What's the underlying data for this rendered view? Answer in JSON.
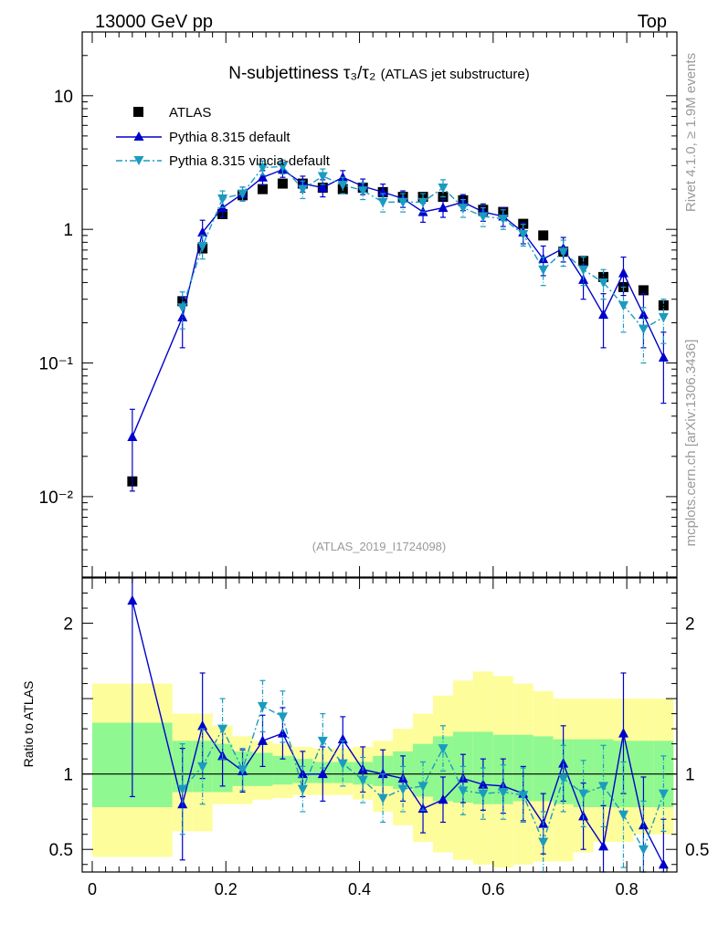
{
  "header": {
    "left": "13000 GeV pp",
    "right": "Top"
  },
  "side_labels": {
    "top": "Rivet 4.1.0, ≥ 1.9M events",
    "bottom": "mcplots.cern.ch [arXiv:1306.3436]"
  },
  "chart_data": {
    "type": "line",
    "title": "N-subjettiness τ₃/τ₂",
    "title_suffix": "(ATLAS jet substructure)",
    "analysis_id": "(ATLAS_2019_I1724098)",
    "x": [
      0.06,
      0.135,
      0.165,
      0.195,
      0.225,
      0.255,
      0.285,
      0.315,
      0.345,
      0.375,
      0.405,
      0.435,
      0.465,
      0.495,
      0.525,
      0.555,
      0.585,
      0.615,
      0.645,
      0.675,
      0.705,
      0.735,
      0.765,
      0.795,
      0.825,
      0.855
    ],
    "x_ticks": [
      0,
      0.2,
      0.4,
      0.6,
      0.8
    ],
    "xlim": [
      -0.015,
      0.875
    ],
    "main": {
      "ylim_log": [
        0.0025,
        30
      ],
      "y_ticks": [
        {
          "value": 10,
          "label": "10"
        },
        {
          "value": 1,
          "label": "1"
        },
        {
          "value": 0.1,
          "label": "10⁻¹"
        },
        {
          "value": 0.01,
          "label": "10⁻²"
        }
      ],
      "series": [
        {
          "name": "ATLAS",
          "style": "data",
          "color": "#000000",
          "values": [
            0.013,
            0.29,
            0.72,
            1.3,
            1.8,
            2.0,
            2.2,
            2.2,
            2.05,
            2.0,
            2.05,
            1.9,
            1.75,
            1.75,
            1.75,
            1.65,
            1.4,
            1.35,
            1.1,
            0.9,
            0.68,
            0.58,
            0.44,
            0.37,
            0.35,
            0.27
          ]
        },
        {
          "name": "Pythia 8.315 default",
          "style": "up",
          "color": "#0000cc",
          "values": [
            0.028,
            0.22,
            0.95,
            1.45,
            1.85,
            2.45,
            2.8,
            2.2,
            2.05,
            2.45,
            2.1,
            1.9,
            1.7,
            1.35,
            1.45,
            1.6,
            1.35,
            1.25,
            0.95,
            0.6,
            0.72,
            0.42,
            0.23,
            0.47,
            0.23,
            0.11
          ],
          "err": [
            0.017,
            0.09,
            0.22,
            0.22,
            0.22,
            0.3,
            0.35,
            0.3,
            0.3,
            0.3,
            0.28,
            0.28,
            0.24,
            0.22,
            0.22,
            0.22,
            0.2,
            0.2,
            0.17,
            0.15,
            0.15,
            0.12,
            0.1,
            0.15,
            0.1,
            0.06
          ]
        },
        {
          "name": "Pythia 8.315 vincia-default",
          "style": "down",
          "color": "#1a9bc0",
          "values": [
            null,
            0.26,
            0.75,
            1.7,
            1.85,
            2.9,
            2.95,
            2.0,
            2.5,
            2.15,
            1.95,
            1.6,
            1.6,
            1.6,
            2.05,
            1.45,
            1.25,
            1.2,
            0.92,
            0.5,
            0.68,
            0.5,
            0.4,
            0.27,
            0.18,
            0.22
          ],
          "err": [
            null,
            0.08,
            0.15,
            0.24,
            0.22,
            0.35,
            0.35,
            0.3,
            0.33,
            0.3,
            0.28,
            0.25,
            0.25,
            0.25,
            0.3,
            0.22,
            0.2,
            0.2,
            0.17,
            0.12,
            0.15,
            0.12,
            0.1,
            0.1,
            0.08,
            0.08
          ]
        }
      ]
    },
    "ratio": {
      "ylabel": "Ratio to ATLAS",
      "ylim": [
        0.35,
        2.3
      ],
      "y_ticks": [
        {
          "value": 0.5,
          "label": "0.5"
        },
        {
          "value": 1,
          "label": "1"
        },
        {
          "value": 2,
          "label": "2"
        }
      ],
      "bands": {
        "edges": [
          0.0,
          0.12,
          0.15,
          0.18,
          0.21,
          0.24,
          0.27,
          0.3,
          0.33,
          0.36,
          0.39,
          0.42,
          0.45,
          0.48,
          0.51,
          0.54,
          0.57,
          0.6,
          0.63,
          0.66,
          0.69,
          0.72,
          0.75,
          0.78,
          0.81,
          0.84,
          0.87
        ],
        "stat_lo": [
          0.78,
          0.88,
          0.88,
          0.88,
          0.92,
          0.92,
          0.93,
          0.94,
          0.94,
          0.94,
          0.93,
          0.92,
          0.9,
          0.85,
          0.82,
          0.81,
          0.8,
          0.8,
          0.82,
          0.82,
          0.8,
          0.78,
          0.78,
          0.78,
          0.78,
          0.78
        ],
        "stat_hi": [
          1.34,
          1.22,
          1.22,
          1.2,
          1.15,
          1.14,
          1.12,
          1.1,
          1.08,
          1.08,
          1.08,
          1.12,
          1.15,
          1.2,
          1.25,
          1.28,
          1.28,
          1.26,
          1.26,
          1.25,
          1.23,
          1.23,
          1.23,
          1.22,
          1.22,
          1.22
        ],
        "tot_lo": [
          0.45,
          0.62,
          0.62,
          0.8,
          0.8,
          0.83,
          0.84,
          0.86,
          0.86,
          0.86,
          0.83,
          0.75,
          0.66,
          0.55,
          0.48,
          0.43,
          0.4,
          0.38,
          0.4,
          0.42,
          0.42,
          0.48,
          0.55,
          0.55,
          0.6,
          0.6
        ],
        "tot_hi": [
          1.6,
          1.4,
          1.4,
          1.32,
          1.25,
          1.22,
          1.2,
          1.18,
          1.17,
          1.17,
          1.18,
          1.22,
          1.3,
          1.4,
          1.52,
          1.62,
          1.68,
          1.65,
          1.6,
          1.55,
          1.5,
          1.5,
          1.5,
          1.5,
          1.5,
          1.5
        ]
      },
      "series": [
        {
          "name": "Pythia 8.315 default",
          "style": "up",
          "color": "#0000cc",
          "values": [
            2.15,
            0.8,
            1.32,
            1.12,
            1.02,
            1.22,
            1.27,
            1.0,
            1.0,
            1.23,
            1.03,
            1.0,
            0.97,
            0.77,
            0.83,
            0.97,
            0.93,
            0.92,
            0.87,
            0.67,
            1.07,
            0.72,
            0.52,
            1.27,
            0.66,
            0.4
          ],
          "err": [
            1.3,
            0.37,
            0.35,
            0.2,
            0.14,
            0.17,
            0.17,
            0.15,
            0.18,
            0.15,
            0.15,
            0.16,
            0.15,
            0.16,
            0.15,
            0.16,
            0.17,
            0.18,
            0.18,
            0.2,
            0.25,
            0.22,
            0.27,
            0.4,
            0.32,
            0.3
          ]
        },
        {
          "name": "Pythia 8.315 vincia-default",
          "style": "down",
          "color": "#1a9bc0",
          "values": [
            null,
            0.9,
            1.05,
            1.3,
            1.03,
            1.45,
            1.38,
            0.9,
            1.22,
            1.07,
            0.96,
            0.84,
            0.9,
            0.92,
            1.17,
            0.89,
            0.87,
            0.88,
            0.86,
            0.55,
            0.97,
            0.87,
            0.92,
            0.73,
            0.5,
            0.87
          ]
        }
      ],
      "vincia_err": [
        null,
        0.3,
        0.25,
        0.2,
        0.14,
        0.17,
        0.17,
        0.15,
        0.18,
        0.15,
        0.15,
        0.16,
        0.15,
        0.16,
        0.15,
        0.16,
        0.17,
        0.18,
        0.18,
        0.2,
        0.22,
        0.22,
        0.27,
        0.35,
        0.32,
        0.25
      ]
    },
    "colors": {
      "stat_band": "#90f890",
      "total_band": "#fdfd9c"
    }
  }
}
